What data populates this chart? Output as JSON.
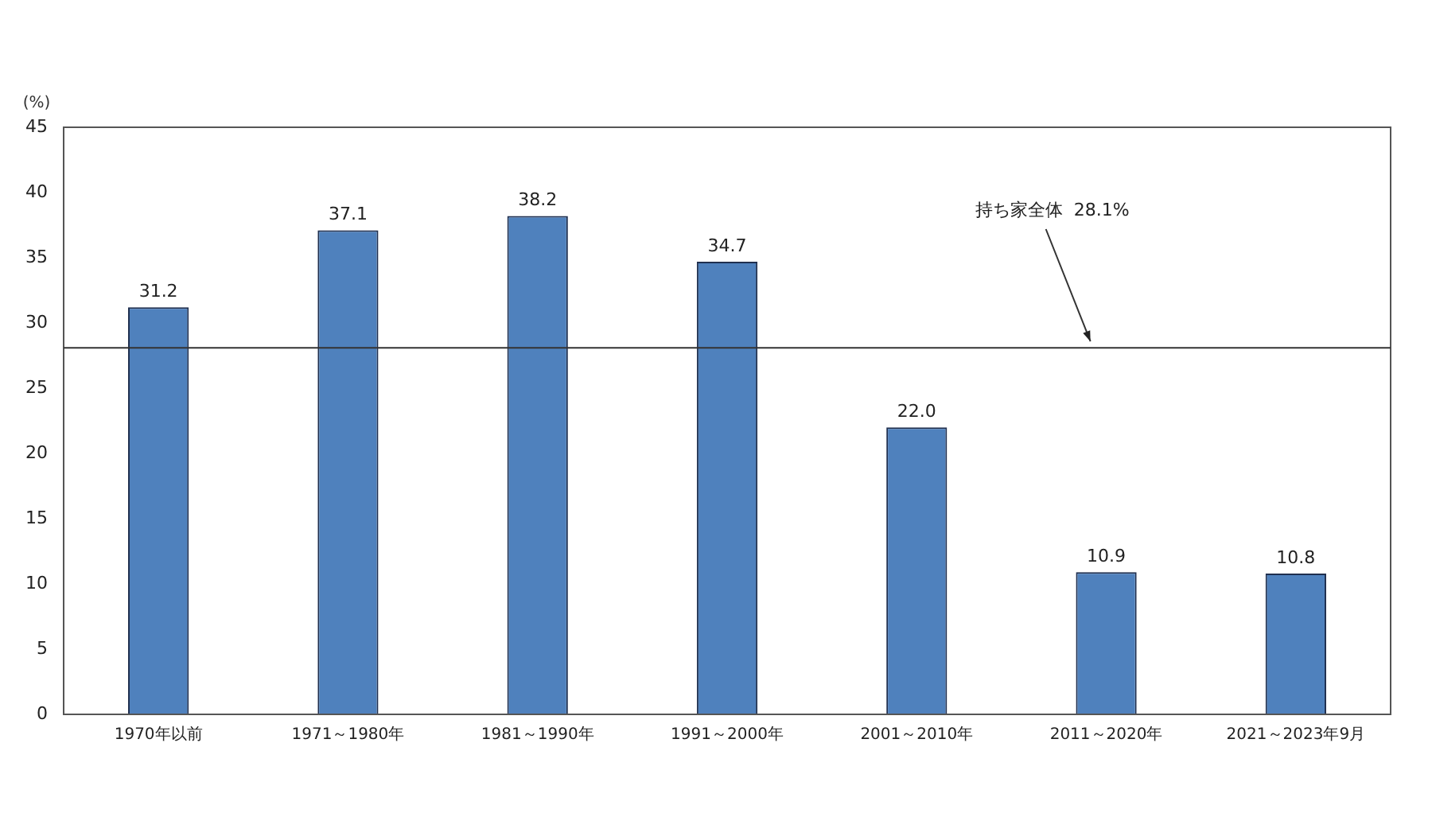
{
  "chart_data": {
    "type": "bar",
    "ylabel": "(%)",
    "categories": [
      "1970年以前",
      "1971～1980年",
      "1981～1990年",
      "1991～2000年",
      "2001～2010年",
      "2011～2020年",
      "2021～2023年9月"
    ],
    "values": [
      31.2,
      37.1,
      38.2,
      34.7,
      22.0,
      10.9,
      10.8
    ],
    "value_labels": [
      "31.2",
      "37.1",
      "38.2",
      "34.7",
      "22.0",
      "10.9",
      "10.8"
    ],
    "color": "#4f81bd",
    "ylim": [
      0,
      45
    ],
    "yticks": [
      0,
      5,
      10,
      15,
      20,
      25,
      30,
      35,
      40,
      45
    ],
    "grid": false,
    "legend": false,
    "ref_lines": [
      {
        "axis": "y",
        "value": 28.1,
        "label": "持ち家全体  28.1%",
        "color": "#333333"
      }
    ]
  }
}
